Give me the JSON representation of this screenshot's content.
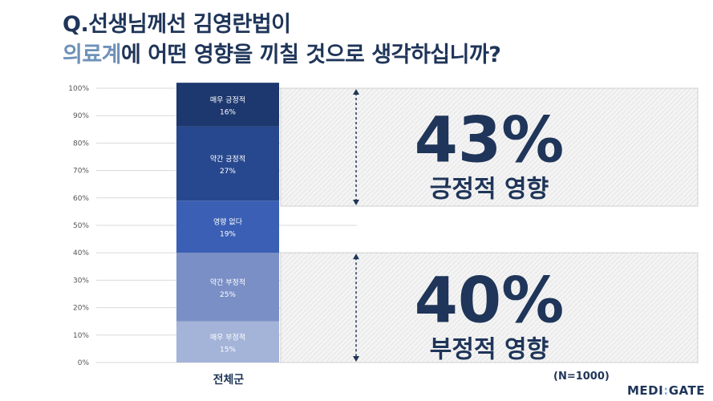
{
  "question": {
    "line1": "Q.선생님께선 김영란법이",
    "line2_highlight": "의료계",
    "line2_rest": "에 어떤 영향을 끼칠 것으로 생각하십니까?"
  },
  "chart_data": {
    "type": "bar",
    "stacked": true,
    "orientation": "vertical",
    "categories": [
      "전체군"
    ],
    "y_ticks": [
      "0%",
      "10%",
      "20%",
      "30%",
      "40%",
      "50%",
      "60%",
      "70%",
      "80%",
      "90%",
      "100%"
    ],
    "ylim": [
      0,
      100
    ],
    "grid": true,
    "series": [
      {
        "name": "매우 부정적",
        "values": [
          15
        ],
        "label": "15%",
        "color": "#a4b3d8"
      },
      {
        "name": "약간 부정적",
        "values": [
          25
        ],
        "label": "25%",
        "color": "#7a8fc6"
      },
      {
        "name": "영향 없다",
        "values": [
          19
        ],
        "label": "19%",
        "color": "#3a5fb4"
      },
      {
        "name": "약간 긍정적",
        "values": [
          27
        ],
        "label": "27%",
        "color": "#27488e"
      },
      {
        "name": "매우 긍정적",
        "values": [
          16
        ],
        "label": "16%",
        "color": "#1d386f"
      }
    ],
    "summaries": [
      {
        "percent": "43%",
        "caption": "긍정적 영향",
        "from": 57,
        "to": 100
      },
      {
        "percent": "40%",
        "caption": "부정적 영향",
        "from": 0,
        "to": 40
      }
    ],
    "note": "(N=1000)"
  },
  "brand": {
    "left": "MEDI",
    "sep": ":",
    "right": "GATE"
  },
  "colors": {
    "navy": "#1f3559",
    "highlight": "#6f92b8",
    "panel_fill": "#f3f3f3",
    "grid": "#d9d9d9"
  }
}
